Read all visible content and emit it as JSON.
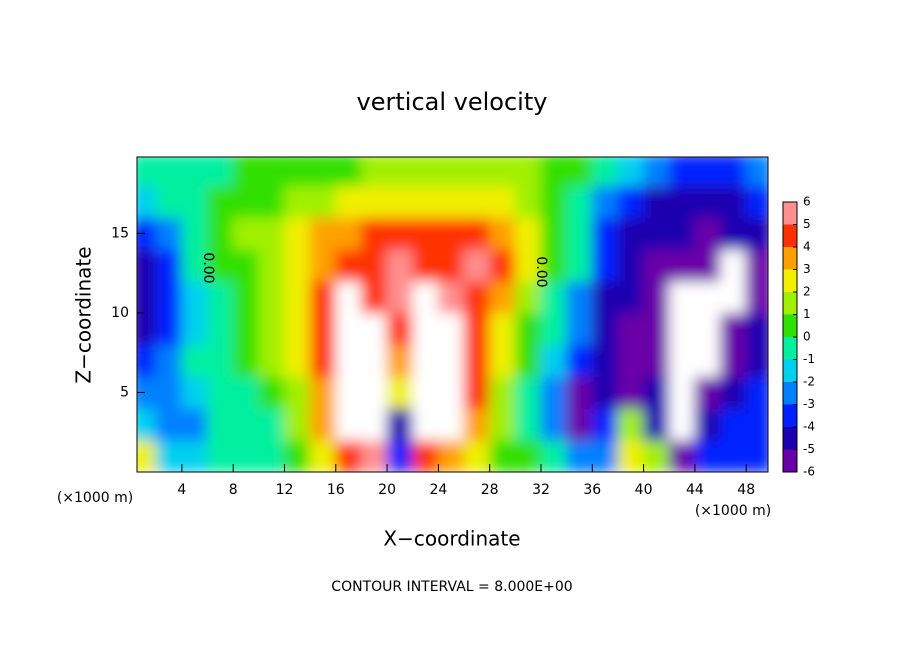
{
  "chart_data": {
    "type": "heatmap",
    "title": "vertical velocity",
    "x_label": "X−coordinate",
    "y_label": "Z−coordinate",
    "x_unit": "(×1000 m)",
    "footer": "CONTOUR INTERVAL = 8.000E+00",
    "contour_labels": [
      "0.00",
      "0.00"
    ],
    "xlim": [
      0.5,
      49.7
    ],
    "ylim": [
      0,
      19.8
    ],
    "xticks": [
      4,
      8,
      12,
      16,
      20,
      24,
      28,
      32,
      36,
      40,
      44,
      48
    ],
    "yticks": [
      5,
      10,
      15
    ],
    "x": [
      1,
      3,
      5,
      7,
      9,
      11,
      13,
      15,
      17,
      19,
      21,
      23,
      25,
      27,
      29,
      31,
      33,
      35,
      37,
      39,
      41,
      43,
      45,
      47,
      49
    ],
    "y": [
      1,
      3,
      5,
      7,
      9,
      11,
      13,
      15,
      17,
      19
    ],
    "z": [
      [
        3,
        -1,
        -1,
        0,
        0,
        0,
        1,
        3,
        5,
        6,
        -3,
        5,
        4,
        3,
        1,
        1,
        0,
        -2,
        -2,
        3,
        2,
        -5,
        -3,
        -3,
        -3
      ],
      [
        -1,
        -2,
        -2,
        0,
        0,
        0,
        2,
        4,
        7,
        8,
        -4,
        8,
        7,
        4,
        2,
        0,
        -2,
        -5,
        -3,
        2,
        -4,
        -7,
        -4,
        -3,
        -3
      ],
      [
        -2,
        -2,
        -1,
        0,
        0,
        1,
        2,
        4,
        7,
        8,
        3,
        8,
        8,
        5,
        2,
        0,
        -2,
        -5,
        -4,
        -5,
        -4,
        -7,
        -6,
        -4,
        -3
      ],
      [
        -3,
        -2,
        0,
        0,
        1,
        2,
        3,
        5,
        7,
        8,
        4,
        8,
        8,
        5,
        3,
        1,
        -1,
        -3,
        -4,
        -5,
        -6,
        -8,
        -7,
        -5,
        -4
      ],
      [
        -4,
        -3,
        -1,
        0,
        1,
        2,
        3,
        5,
        7,
        7,
        5,
        8,
        8,
        5,
        3,
        1,
        0,
        -2,
        -4,
        -5,
        -6,
        -8,
        -7,
        -6,
        -4
      ],
      [
        -4,
        -3,
        -1,
        0,
        1,
        2,
        3,
        5,
        7,
        5,
        6,
        7,
        6,
        5,
        4,
        2,
        0,
        -2,
        -4,
        -4,
        -5,
        -7,
        -7,
        -7,
        -5
      ],
      [
        -4,
        -3,
        0,
        1,
        1,
        2,
        3,
        4,
        5,
        5,
        6,
        5,
        5,
        6,
        5,
        3,
        1,
        0,
        -3,
        -4,
        -5,
        -5,
        -6,
        -7,
        -5
      ],
      [
        -3,
        -2,
        0,
        1,
        2,
        2,
        3,
        4,
        4,
        5,
        5,
        5,
        5,
        5,
        4,
        3,
        1,
        0,
        -3,
        -4,
        -4,
        -4,
        -5,
        -4,
        -4
      ],
      [
        -1,
        0,
        0,
        1,
        1,
        1,
        2,
        2,
        3,
        3,
        3,
        3,
        3,
        3,
        3,
        2,
        1,
        0,
        -2,
        -3,
        -4,
        -4,
        -4,
        -4,
        -3
      ],
      [
        0,
        0,
        0,
        0,
        1,
        1,
        1,
        1,
        1,
        2,
        2,
        2,
        2,
        2,
        2,
        2,
        1,
        1,
        0,
        -1,
        -2,
        -3,
        -3,
        -3,
        -2
      ]
    ],
    "colorbar_ticks": [
      -6,
      -5,
      -4,
      -3,
      -2,
      -1,
      0,
      1,
      2,
      3,
      4,
      5,
      6
    ],
    "colorbar_colors": [
      "#6a00a8",
      "#1a00b0",
      "#0020ff",
      "#0080ff",
      "#00d0f0",
      "#00f0a0",
      "#30e000",
      "#a0f000",
      "#f0f000",
      "#ffa000",
      "#ff3000",
      "#ff9090"
    ],
    "out_of_range_color": "#ffffff"
  }
}
